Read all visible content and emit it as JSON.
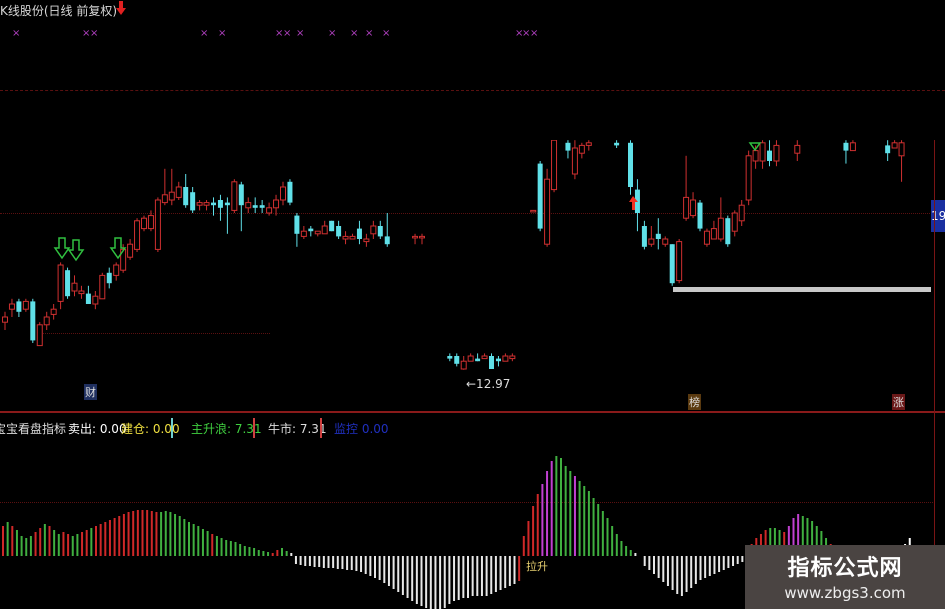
{
  "header": {
    "title": "K线股份(日线 前复权)"
  },
  "colors": {
    "up": "#d03030",
    "down": "#60e0e8",
    "hist_red": "#d02828",
    "hist_green": "#40b040",
    "hist_magenta": "#c040d0",
    "hist_white": "#e8e8e8",
    "support": "#c8c8c8"
  },
  "price_panel": {
    "price_label": "19",
    "low_label": "←12.97",
    "tags": [
      {
        "text": "财",
        "color": "#8fb0ff"
      },
      {
        "text": "榜",
        "color": "#f0c070"
      },
      {
        "text": "涨",
        "color": "#ff7070"
      }
    ],
    "candles": [
      [
        14.8,
        15.0,
        15.2,
        14.5
      ],
      [
        15.3,
        15.5,
        15.7,
        15.0
      ],
      [
        15.6,
        15.2,
        15.7,
        15.0
      ],
      [
        15.3,
        15.6,
        15.7,
        15.2
      ],
      [
        15.6,
        14.1,
        15.7,
        14.0
      ],
      [
        13.9,
        14.7,
        14.8,
        13.9
      ],
      [
        14.7,
        15.0,
        15.2,
        14.5
      ],
      [
        15.1,
        15.3,
        15.5,
        14.9
      ],
      [
        15.6,
        17.0,
        17.1,
        15.3
      ],
      [
        16.8,
        15.8,
        16.9,
        15.7
      ],
      [
        16.0,
        16.3,
        16.6,
        15.8
      ],
      [
        15.9,
        16.0,
        16.2,
        15.7
      ],
      [
        15.9,
        15.5,
        16.2,
        15.5
      ],
      [
        15.5,
        15.8,
        16.0,
        15.3
      ],
      [
        15.7,
        16.6,
        16.7,
        15.7
      ],
      [
        16.7,
        16.3,
        16.9,
        16.1
      ],
      [
        16.6,
        17.0,
        17.1,
        16.4
      ],
      [
        16.8,
        17.6,
        17.8,
        16.7
      ],
      [
        17.3,
        17.8,
        18.0,
        17.2
      ],
      [
        17.6,
        18.7,
        18.8,
        17.5
      ],
      [
        18.4,
        18.8,
        18.9,
        18.3
      ],
      [
        18.4,
        18.9,
        19.1,
        18.3
      ],
      [
        17.6,
        19.5,
        19.6,
        17.5
      ],
      [
        19.4,
        19.7,
        20.7,
        19.3
      ],
      [
        19.5,
        19.8,
        20.7,
        19.3
      ],
      [
        19.6,
        20.0,
        20.2,
        19.5
      ],
      [
        20.0,
        19.3,
        20.5,
        19.2
      ],
      [
        19.8,
        19.1,
        20.0,
        19.0
      ],
      [
        19.3,
        19.4,
        19.5,
        19.1
      ],
      [
        19.3,
        19.4,
        19.5,
        19.1
      ],
      [
        19.4,
        19.3,
        19.6,
        18.9
      ],
      [
        19.5,
        19.2,
        19.7,
        18.7
      ],
      [
        19.4,
        19.3,
        19.6,
        18.2
      ],
      [
        19.1,
        20.2,
        20.3,
        19.0
      ],
      [
        20.1,
        19.3,
        20.2,
        18.3
      ],
      [
        19.2,
        19.4,
        19.6,
        19.0
      ],
      [
        19.3,
        19.2,
        19.6,
        19.0
      ],
      [
        19.3,
        19.2,
        19.5,
        19.0
      ],
      [
        19.0,
        19.2,
        19.4,
        18.9
      ],
      [
        19.2,
        19.5,
        19.7,
        18.9
      ],
      [
        19.5,
        20.0,
        20.2,
        19.3
      ],
      [
        20.2,
        19.4,
        20.3,
        19.3
      ],
      [
        18.9,
        18.2,
        19.0,
        17.7
      ],
      [
        18.1,
        18.3,
        18.5,
        18.0
      ],
      [
        18.4,
        18.3,
        18.5,
        18.1
      ],
      [
        18.2,
        18.3,
        18.3,
        18.1
      ],
      [
        18.2,
        18.5,
        18.7,
        18.2
      ],
      [
        18.7,
        18.3,
        18.7,
        18.3
      ],
      [
        18.5,
        18.1,
        18.7,
        18.0
      ],
      [
        18.0,
        18.1,
        18.3,
        17.8
      ],
      [
        18.0,
        18.1,
        18.2,
        18.0
      ],
      [
        18.4,
        18.0,
        18.7,
        17.8
      ],
      [
        17.9,
        18.0,
        18.2,
        17.7
      ],
      [
        18.2,
        18.5,
        18.7,
        18.0
      ],
      [
        18.5,
        18.1,
        18.7,
        18.0
      ],
      [
        18.1,
        17.8,
        19.0,
        17.7
      ],
      null,
      null,
      null,
      [
        18.1,
        18.1,
        18.2,
        17.8
      ],
      [
        18.1,
        18.1,
        18.2,
        17.8
      ],
      null,
      null,
      null,
      [
        13.5,
        13.4,
        13.6,
        13.3
      ],
      [
        13.5,
        13.2,
        13.6,
        13.1
      ],
      [
        13.0,
        13.3,
        13.5,
        12.97
      ],
      [
        13.3,
        13.5,
        13.6,
        13.3
      ],
      [
        13.4,
        13.3,
        13.6,
        13.3
      ],
      [
        13.4,
        13.5,
        13.6,
        13.4
      ],
      [
        13.5,
        13.0,
        13.6,
        13.0
      ],
      [
        13.4,
        13.3,
        13.5,
        13.1
      ],
      [
        13.3,
        13.5,
        13.6,
        13.3
      ],
      [
        13.4,
        13.5,
        13.6,
        13.3
      ],
      null,
      null,
      [
        19.1,
        19.1,
        19.1,
        19.1
      ],
      [
        20.9,
        18.4,
        21.0,
        18.3
      ],
      [
        17.8,
        20.3,
        20.7,
        17.7
      ],
      [
        19.9,
        21.8,
        21.9,
        19.8
      ],
      null,
      [
        21.7,
        21.4,
        21.8,
        21.1
      ],
      [
        20.5,
        21.5,
        21.8,
        20.3
      ],
      [
        21.3,
        21.6,
        21.7,
        21.1
      ],
      [
        21.6,
        21.7,
        21.8,
        21.4
      ],
      null,
      null,
      null,
      [
        21.7,
        21.6,
        21.8,
        21.5
      ],
      null,
      [
        21.7,
        20.0,
        21.8,
        19.7
      ],
      [
        19.9,
        19.0,
        20.3,
        18.3
      ],
      [
        18.5,
        17.7,
        18.7,
        17.6
      ],
      [
        17.8,
        18.0,
        18.5,
        17.7
      ],
      [
        18.2,
        18.0,
        18.8,
        17.6
      ],
      [
        17.8,
        18.0,
        18.1,
        17.7
      ],
      [
        17.8,
        16.3,
        17.8,
        16.2
      ],
      [
        16.4,
        17.9,
        18.0,
        16.3
      ],
      [
        18.8,
        19.6,
        21.2,
        18.7
      ],
      [
        18.9,
        19.5,
        19.8,
        18.8
      ],
      [
        19.4,
        18.4,
        19.5,
        18.3
      ],
      [
        17.8,
        18.3,
        18.4,
        17.7
      ],
      [
        18.0,
        18.4,
        18.7,
        18.0
      ],
      [
        18.0,
        18.8,
        19.6,
        17.9
      ],
      [
        18.8,
        17.8,
        18.9,
        17.7
      ],
      [
        18.3,
        19.0,
        19.1,
        18.1
      ],
      [
        18.7,
        19.3,
        19.5,
        18.5
      ],
      [
        19.5,
        21.2,
        21.4,
        19.3
      ],
      [
        21.0,
        21.4,
        21.6,
        20.7
      ],
      [
        21.0,
        21.7,
        21.8,
        20.7
      ],
      [
        21.4,
        21.0,
        21.8,
        20.8
      ],
      [
        21.0,
        21.6,
        21.8,
        20.8
      ],
      null,
      null,
      [
        21.3,
        21.6,
        21.8,
        21.0
      ],
      null,
      null,
      null,
      null,
      null,
      null,
      [
        21.7,
        21.4,
        21.8,
        20.9
      ],
      [
        21.4,
        21.7,
        21.8,
        21.4
      ],
      null,
      null,
      null,
      null,
      [
        21.6,
        21.3,
        21.8,
        21.0
      ],
      [
        21.5,
        21.7,
        21.8,
        21.5
      ],
      [
        21.2,
        21.7,
        21.8,
        20.2
      ]
    ]
  },
  "indicator": {
    "name": "宝宝看盘指标",
    "sell": "卖出: 0.00",
    "build": "建仓: 0.00",
    "main_wave": "主升浪: 7.31",
    "bull": "牛市: 7.31",
    "monitor": "监控 0.00",
    "lift_label": "拉升"
  },
  "chart_data": {
    "type": "bar",
    "values": [
      30,
      34,
      30,
      26,
      20,
      18,
      20,
      24,
      28,
      32,
      30,
      26,
      22,
      24,
      22,
      20,
      22,
      24,
      26,
      28,
      30,
      32,
      34,
      36,
      38,
      40,
      42,
      44,
      45,
      46,
      46,
      46,
      45,
      44,
      44,
      45,
      44,
      42,
      40,
      37,
      34,
      32,
      30,
      27,
      25,
      22,
      20,
      18,
      16,
      15,
      14,
      12,
      10,
      9,
      8,
      6,
      5,
      4,
      3,
      6,
      8,
      5,
      3,
      -8,
      -9,
      -10,
      -10,
      -11,
      -11,
      -12,
      -12,
      -12,
      -13,
      -13,
      -14,
      -14,
      -15,
      -16,
      -18,
      -20,
      -22,
      -24,
      -27,
      -30,
      -33,
      -36,
      -39,
      -42,
      -45,
      -48,
      -50,
      -52,
      -54,
      -55,
      -54,
      -52,
      -48,
      -45,
      -44,
      -42,
      -42,
      -40,
      -40,
      -40,
      -40,
      -38,
      -36,
      -34,
      -32,
      -30,
      -28,
      -25,
      20,
      35,
      50,
      62,
      72,
      85,
      95,
      100,
      98,
      90,
      85,
      80,
      75,
      70,
      65,
      58,
      52,
      45,
      38,
      30,
      22,
      15,
      10,
      6,
      3,
      0,
      -10,
      -14,
      -18,
      -22,
      -26,
      -30,
      -34,
      -38,
      -40,
      -36,
      -32,
      -28,
      -24,
      -22,
      -20,
      -18,
      -16,
      -14,
      -12,
      -10,
      -8,
      -6,
      -5,
      12,
      18,
      22,
      26,
      28,
      28,
      26,
      24,
      30,
      38,
      42,
      40,
      38,
      35,
      30,
      25,
      18,
      12,
      6,
      5,
      4,
      3,
      3,
      2,
      2,
      2,
      2,
      2,
      3,
      4,
      6,
      8,
      10,
      12,
      18
    ],
    "bar_colors": "rgrggggrrgrggrrggrrgrrrrrrrrrrrrrrgggggggggggrggggggggggggrrggwwwwwwwwwwwwwwwwwwwwwwwwwwwwwwwwwwwwwwwwwwwwwwwwwrrrrrmmmggggmggggggggggggwwwwwwwwwwwwwwwwwwwwwwwwrrrrrgggrmmmggggggrgrgrgrgrgrgrgrm"
  },
  "watermark": {
    "cn": "指标公式网",
    "url": "www.zbgs3.com"
  }
}
